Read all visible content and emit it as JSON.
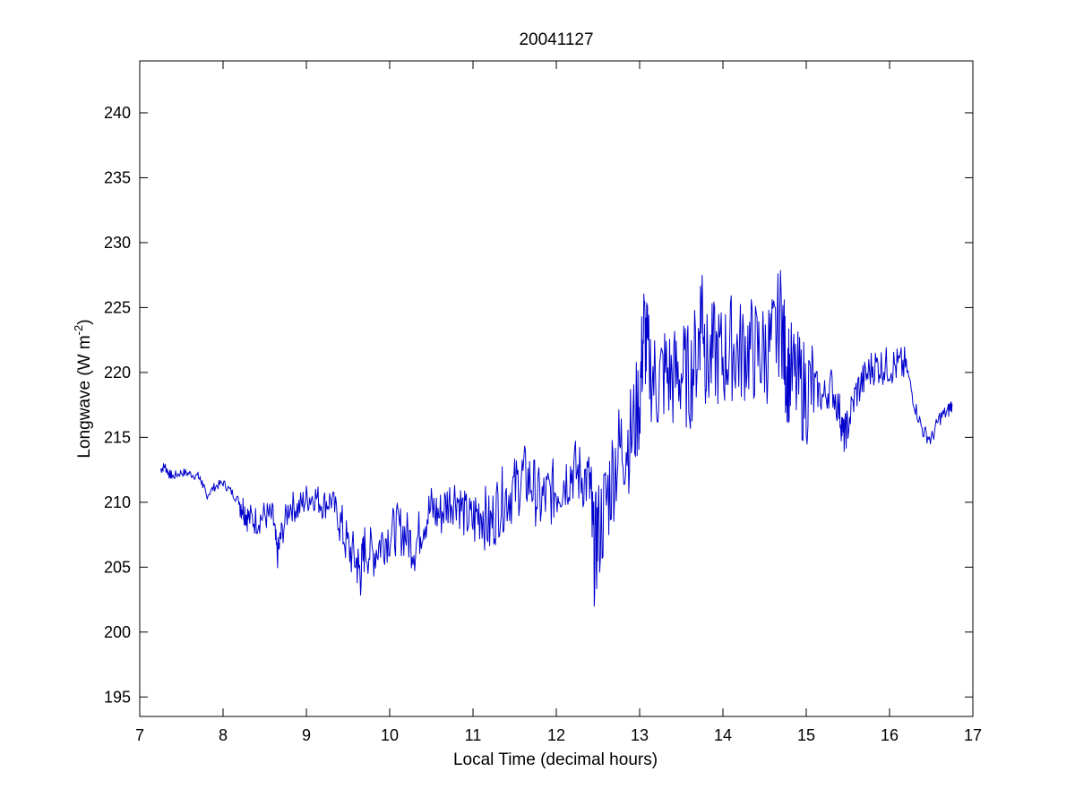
{
  "chart_data": {
    "type": "line",
    "title": "20041127",
    "xlabel": "Local Time (decimal hours)",
    "ylabel_main": "Longwave (W m",
    "ylabel_sup": "-2",
    "ylabel_close": ")",
    "xlim": [
      7,
      17
    ],
    "ylim": [
      193.5,
      244
    ],
    "xticks": [
      7,
      8,
      9,
      10,
      11,
      12,
      13,
      14,
      15,
      16,
      17
    ],
    "yticks": [
      195,
      200,
      205,
      210,
      215,
      220,
      225,
      230,
      235,
      240
    ],
    "grid": false,
    "legend": "none",
    "line_color": "#0000cc",
    "series": [
      {
        "x": [
          7.25,
          7.3,
          7.35,
          7.4,
          7.5,
          7.6,
          7.7,
          7.75,
          7.8,
          7.9,
          8.0,
          8.1,
          8.2,
          8.25,
          8.3,
          8.4,
          8.5,
          8.6,
          8.65,
          8.7,
          8.8,
          8.9,
          9.0,
          9.1,
          9.2,
          9.3,
          9.4,
          9.5,
          9.6,
          9.65,
          9.7,
          9.8,
          9.9,
          10.0,
          10.1,
          10.2,
          10.3,
          10.4,
          10.5,
          10.6,
          10.7,
          10.8,
          10.9,
          11.0,
          11.1,
          11.2,
          11.3,
          11.4,
          11.5,
          11.6,
          11.7,
          11.8,
          11.9,
          12.0,
          12.1,
          12.2,
          12.3,
          12.4,
          12.45,
          12.5,
          12.6,
          12.7,
          12.8,
          12.9,
          13.0,
          13.05,
          13.1,
          13.2,
          13.3,
          13.4,
          13.5,
          13.6,
          13.7,
          13.75,
          13.8,
          13.9,
          14.0,
          14.1,
          14.2,
          14.3,
          14.4,
          14.5,
          14.6,
          14.7,
          14.75,
          14.8,
          14.9,
          15.0,
          15.1,
          15.2,
          15.3,
          15.4,
          15.45,
          15.5,
          15.6,
          15.7,
          15.8,
          15.9,
          16.0,
          16.1,
          16.2,
          16.3,
          16.4,
          16.5,
          16.6,
          16.7,
          16.75
        ],
        "y": [
          212.5,
          212.8,
          212.2,
          212.0,
          212.3,
          212.2,
          212.0,
          211.5,
          210.5,
          211.2,
          211.5,
          210.8,
          210.0,
          209.5,
          208.8,
          208.6,
          209.0,
          208.8,
          205.8,
          207.5,
          209.8,
          209.5,
          210.3,
          210.5,
          209.8,
          210.2,
          208.5,
          206.5,
          205.5,
          204.5,
          206.5,
          206.0,
          207.0,
          207.5,
          208.0,
          207.5,
          206.5,
          208.5,
          209.5,
          209.0,
          210.0,
          210.5,
          209.0,
          208.5,
          209.5,
          208.0,
          209.8,
          210.5,
          211.0,
          212.0,
          211.5,
          210.0,
          210.5,
          211.0,
          211.8,
          212.5,
          212.0,
          211.5,
          206.0,
          207.5,
          210.0,
          213.0,
          214.5,
          215.0,
          218.0,
          223.5,
          221.0,
          219.0,
          220.0,
          219.5,
          220.0,
          219.5,
          222.0,
          226.0,
          220.5,
          221.5,
          221.0,
          222.0,
          221.5,
          222.0,
          221.5,
          221.5,
          222.0,
          224.5,
          220.5,
          220.0,
          219.0,
          218.5,
          219.0,
          218.0,
          219.0,
          217.0,
          215.0,
          216.0,
          218.5,
          219.5,
          220.5,
          220.5,
          220.5,
          220.5,
          220.5,
          217.5,
          215.5,
          214.8,
          216.5,
          217.0,
          217.6
        ]
      }
    ]
  }
}
